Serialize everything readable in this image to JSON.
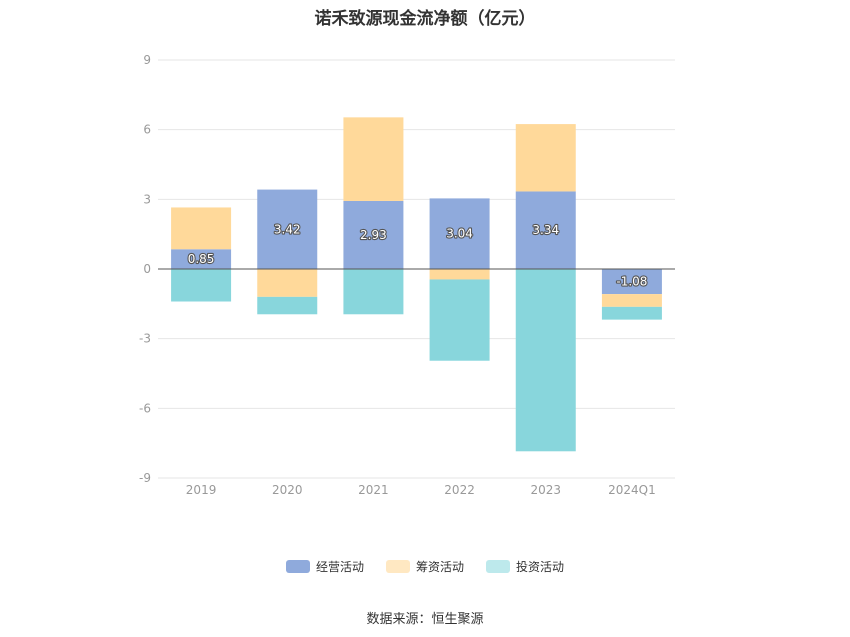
{
  "chart_data": {
    "type": "bar",
    "stacked": true,
    "title": "诺禾致源现金流净额（亿元）",
    "xlabel": "",
    "ylabel": "",
    "categories": [
      "2019",
      "2020",
      "2021",
      "2022",
      "2023",
      "2024Q1"
    ],
    "ylim": [
      -9,
      9
    ],
    "yticks": [
      9,
      6,
      3,
      0,
      -3,
      -6,
      -9
    ],
    "grid": true,
    "legend_position": "bottom",
    "series": [
      {
        "name": "经营活动",
        "color": "#8faadc",
        "values": [
          0.85,
          3.42,
          2.93,
          3.04,
          3.34,
          -1.08
        ],
        "labels": [
          "0.85",
          "3.42",
          "2.93",
          "3.04",
          "3.34",
          "-1.08"
        ]
      },
      {
        "name": "筹资活动",
        "color": "#ffd99a",
        "values": [
          1.8,
          -1.2,
          3.6,
          -0.45,
          2.9,
          -0.55
        ]
      },
      {
        "name": "投资活动",
        "color": "#88d6dc",
        "values": [
          -1.4,
          -0.75,
          -1.95,
          -3.5,
          -7.85,
          -0.55
        ]
      }
    ],
    "legend_colors": [
      "#8faadc",
      "#ffe8c2",
      "#bde9ec"
    ]
  },
  "source_text": "数据来源：恒生聚源"
}
